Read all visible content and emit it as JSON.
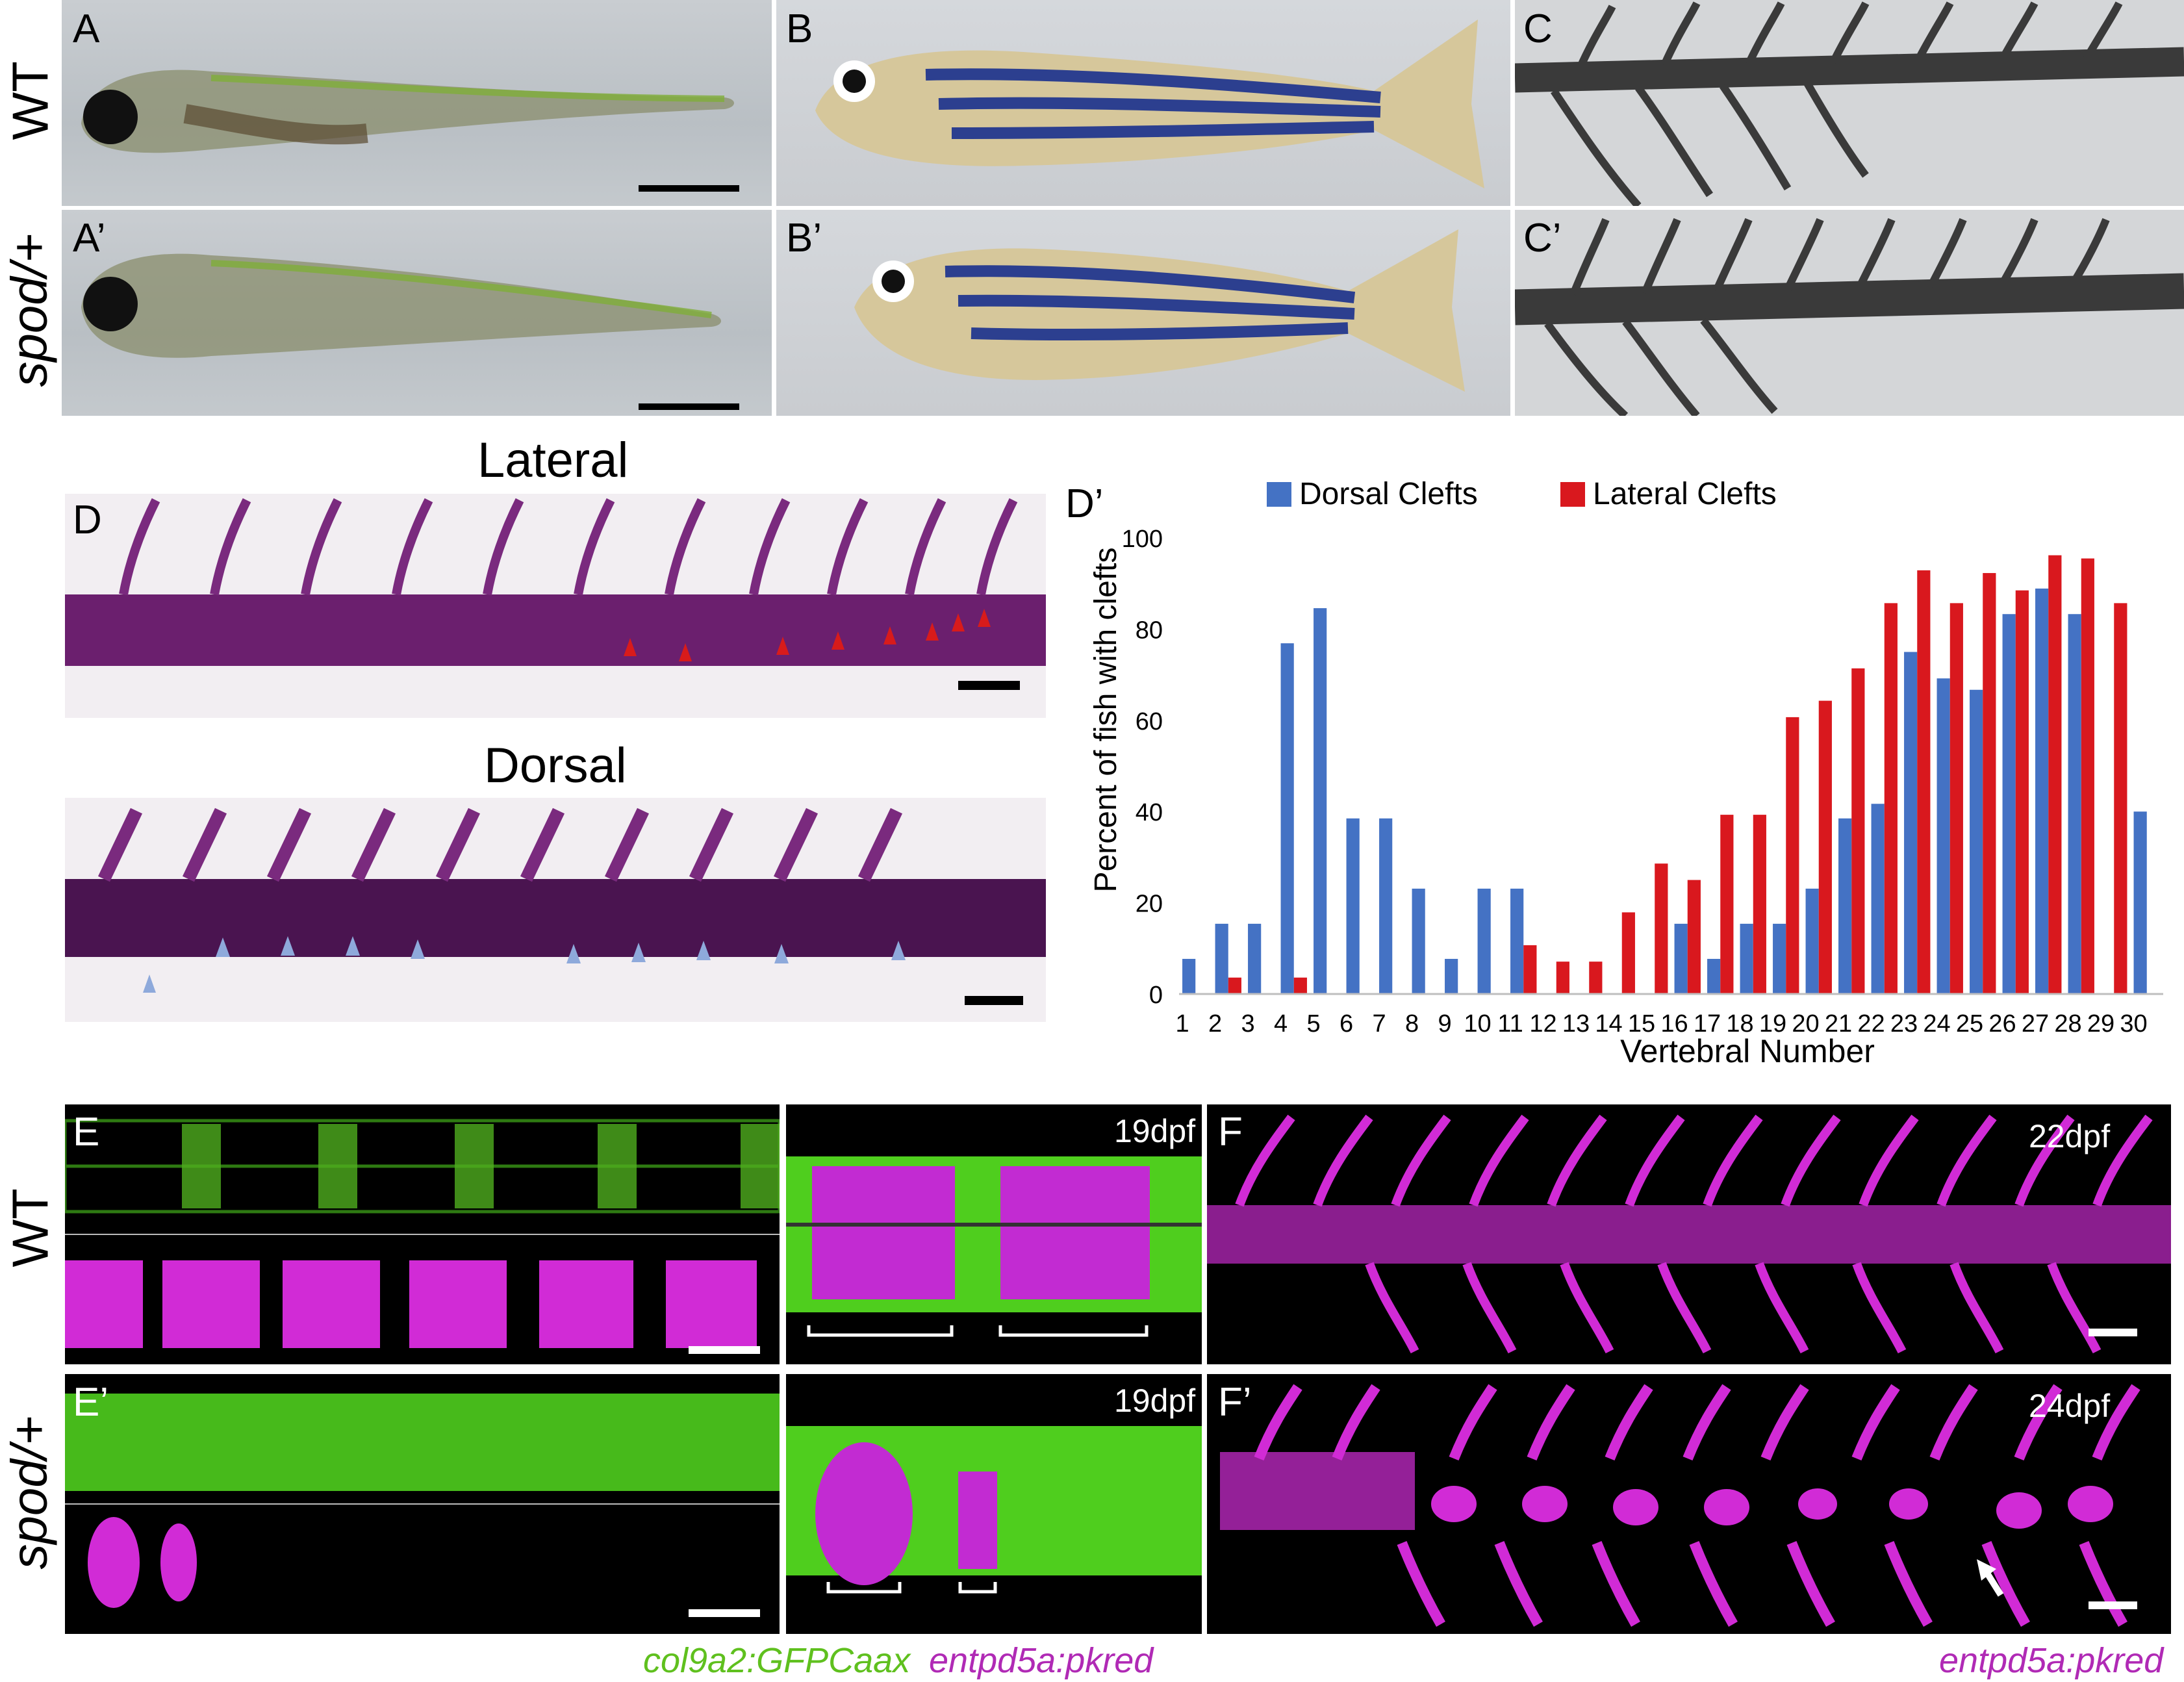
{
  "row_labels": {
    "wt": "WT",
    "spod": "spod/+"
  },
  "panels": {
    "A": "A",
    "A2": "A’",
    "B": "B",
    "B2": "B’",
    "C": "C",
    "C2": "C’",
    "D": "D",
    "D2": "D’",
    "E": "E",
    "E2": "E’",
    "F": "F",
    "F2": "F’"
  },
  "d_headings": {
    "lateral": "Lateral",
    "dorsal": "Dorsal"
  },
  "stamps": {
    "e_wt": "19dpf",
    "e_spod": "19dpf",
    "f_wt": "22dpf",
    "f_spod": "24dpf"
  },
  "captions": {
    "green": "col9a2:GFPCaax",
    "magenta": "entpd5a:pkred",
    "f_magenta": "entpd5a:pkred"
  },
  "colors": {
    "dorsal": "#4472C4",
    "lateral": "#D9181E",
    "gfp": "#5FE01E",
    "magenta": "#E02BE6"
  },
  "chart_data": {
    "type": "bar",
    "xlabel": "Vertebral Number",
    "ylabel": "Percent of fish with clefts",
    "ylim": [
      0,
      100
    ],
    "yticks": [
      0,
      20,
      40,
      60,
      80,
      100
    ],
    "legend_position": "top",
    "categories": [
      1,
      2,
      3,
      4,
      5,
      6,
      7,
      8,
      9,
      10,
      11,
      12,
      13,
      14,
      15,
      16,
      17,
      18,
      19,
      20,
      21,
      22,
      23,
      24,
      25,
      26,
      27,
      28,
      29,
      30
    ],
    "series": [
      {
        "name": "Dorsal Clefts",
        "color": "#4472C4",
        "values": [
          7.7,
          15.4,
          15.4,
          76.9,
          84.6,
          38.5,
          38.5,
          23.1,
          7.7,
          23.1,
          23.1,
          0,
          0,
          0,
          0,
          15.4,
          7.7,
          15.4,
          15.4,
          23.1,
          38.5,
          41.7,
          75,
          69.2,
          66.7,
          83.3,
          88.9,
          83.3,
          0,
          40
        ]
      },
      {
        "name": "Lateral Clefts",
        "color": "#D9181E",
        "values": [
          0,
          3.6,
          0,
          3.6,
          0,
          0,
          0,
          0,
          0,
          0,
          10.7,
          7.1,
          7.1,
          17.9,
          28.6,
          25,
          39.3,
          39.3,
          60.7,
          64.3,
          71.4,
          85.7,
          92.9,
          85.7,
          92.3,
          88.5,
          96.2,
          95.5,
          85.7,
          0
        ]
      }
    ]
  }
}
